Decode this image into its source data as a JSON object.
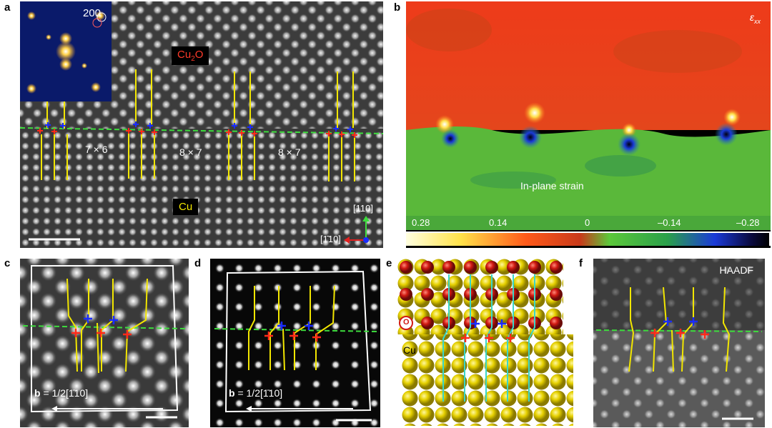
{
  "figure": {
    "panel_labels": [
      "a",
      "b",
      "c",
      "d",
      "e",
      "f"
    ]
  },
  "panel_a": {
    "fft_spot_label": "200",
    "phase_top": {
      "base": "Cu",
      "sub": "2",
      "suffix": "O"
    },
    "phase_bottom": "Cu",
    "ratios": [
      "7 × 6",
      "8 × 7",
      "8 × 7"
    ],
    "axis_up": "[110]",
    "axis_left": "[1̄10]"
  },
  "panel_b": {
    "symbol_base": "ε",
    "symbol_sub": "xx",
    "caption": "In-plane strain",
    "colorbar_ticks": [
      "0.28",
      "0.14",
      "0",
      "–0.14",
      "–0.28"
    ]
  },
  "panel_c": {
    "burgers": "b = 1/2[1̄10]",
    "burgers_bold": "b",
    "burgers_rest": " = 1/2[1̄10]"
  },
  "panel_d": {
    "burgers_bold": "b",
    "burgers_rest": " = 1/2[1̄10]"
  },
  "panel_e": {
    "oxygen_label": "O",
    "copper_label": "Cu"
  },
  "panel_f": {
    "mode_label": "HAADF"
  },
  "colors": {
    "interface": "#3ddc3d",
    "dislocation_line": "#f2e600",
    "plus_blue": "#1a2cff",
    "plus_red": "#ff2a1a",
    "cu_atom": "#e6d100",
    "o_atom": "#d11a12",
    "scale_bar": "#ffffff"
  }
}
